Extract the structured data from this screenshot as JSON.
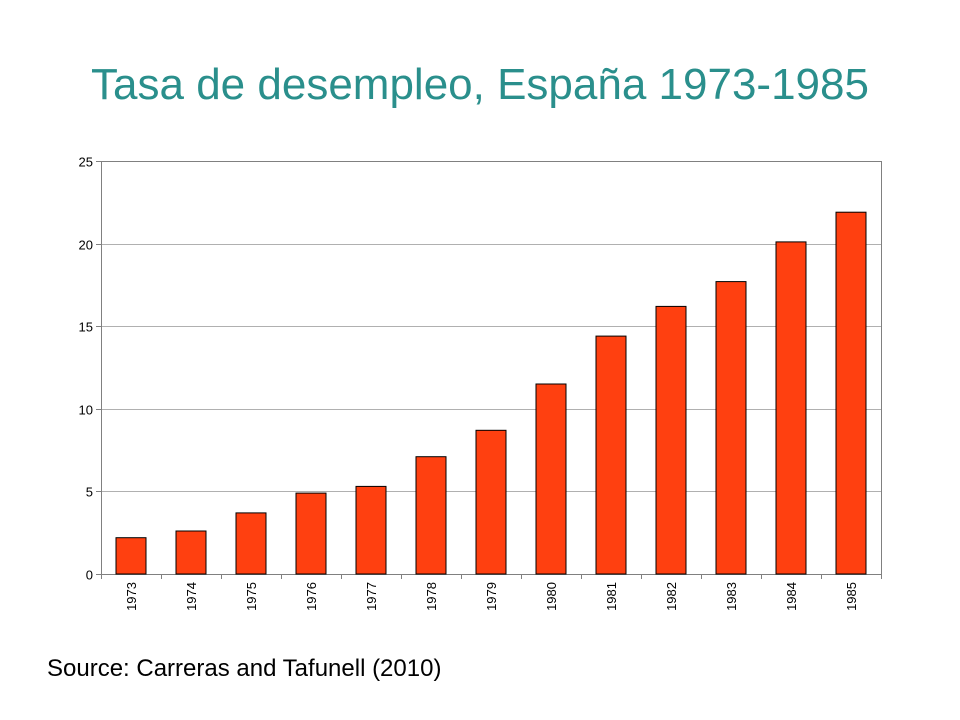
{
  "slide": {
    "title": "Tasa de desempleo, España 1973-1985",
    "source": "Source: Carreras and Tafunell (2010)"
  },
  "colors": {
    "title": "#2a8f8c",
    "bar_fill": "#ff4010",
    "bar_stroke": "#000000",
    "grid": "#b0b0b0",
    "axis": "#808080"
  },
  "chart_data": {
    "type": "bar",
    "categories": [
      "1973",
      "1974",
      "1975",
      "1976",
      "1977",
      "1978",
      "1979",
      "1980",
      "1981",
      "1982",
      "1983",
      "1984",
      "1985"
    ],
    "values": [
      2.2,
      2.6,
      3.7,
      4.9,
      5.3,
      7.1,
      8.7,
      11.5,
      14.4,
      16.2,
      17.7,
      20.1,
      21.9
    ],
    "title": "",
    "xlabel": "",
    "ylabel": "",
    "ylim": [
      0,
      25
    ],
    "yticks": [
      0,
      5,
      10,
      15,
      20,
      25
    ],
    "grid": true,
    "legend": "none"
  }
}
